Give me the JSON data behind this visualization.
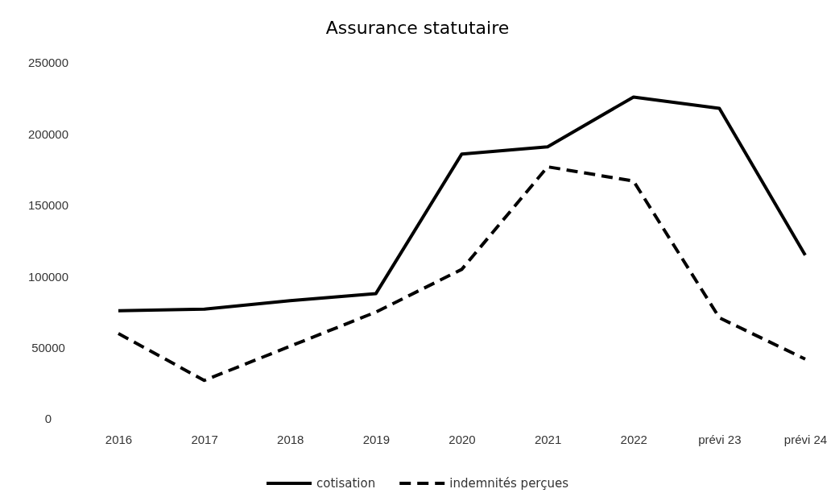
{
  "chart_data": {
    "type": "line",
    "title": "Assurance statutaire",
    "categories": [
      "2016",
      "2017",
      "2018",
      "2019",
      "2020",
      "2021",
      "2022",
      "prévi 23",
      "prévi 24"
    ],
    "series": [
      {
        "name": "cotisation",
        "color": "#000000",
        "line_style": "solid",
        "values": [
          76000,
          77000,
          83000,
          88000,
          186000,
          191000,
          226000,
          218000,
          115000
        ]
      },
      {
        "name": "indemnités perçues",
        "color": "#000000",
        "line_style": "dashed",
        "values": [
          60000,
          27000,
          51000,
          75000,
          105000,
          177000,
          167000,
          71000,
          42000
        ]
      }
    ],
    "ylim": [
      0,
      250000
    ],
    "yticks": [
      0,
      50000,
      100000,
      150000,
      200000,
      250000
    ],
    "grid": false,
    "legend": "bottom"
  }
}
